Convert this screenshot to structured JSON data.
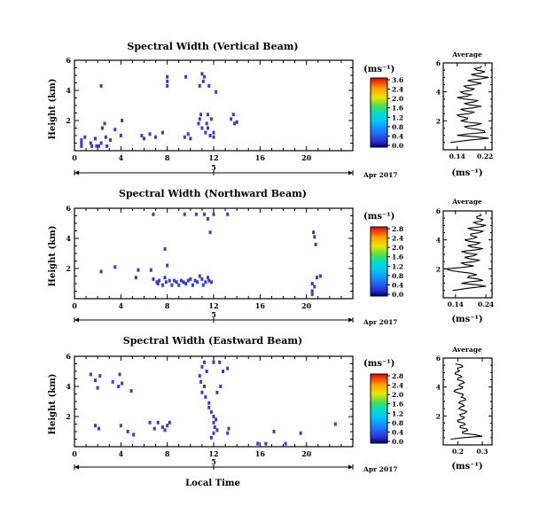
{
  "x_axis_label": "Local Time",
  "date_label": "Apr 2017",
  "date_day": "5",
  "panels": [
    {
      "title": "Spectral Width (Vertical Beam)",
      "ylabel": "Height (km)",
      "unit_label": "(ms⁻¹)",
      "colorbar_ticks": [
        "3.6",
        "2.4",
        "2.0",
        "1.6",
        "1.2",
        "0.8",
        "0.4",
        "0.0"
      ],
      "avg_title": "Average",
      "avg_xticks": [
        "0.14",
        "0.22"
      ],
      "avg_xlabel": "(ms⁻¹)"
    },
    {
      "title": "Spectral Width (Northward Beam)",
      "ylabel": "Height (km)",
      "unit_label": "(ms⁻¹)",
      "colorbar_ticks": [
        "2.8",
        "2.4",
        "2.0",
        "1.6",
        "1.2",
        "0.8",
        "0.4",
        "0.0"
      ],
      "avg_title": "Average",
      "avg_xticks": [
        "0.14",
        "0.24"
      ],
      "avg_xlabel": "(ms⁻¹)"
    },
    {
      "title": "Spectral Width (Eastward Beam)",
      "ylabel": "Height (km)",
      "unit_label": "(ms⁻¹)",
      "colorbar_ticks": [
        "2.8",
        "2.4",
        "2.0",
        "1.6",
        "1.2",
        "0.8",
        "0.4",
        "0.0"
      ],
      "avg_title": "Average",
      "avg_xticks": [
        "0.2",
        "0.3"
      ],
      "avg_xlabel": "(ms⁻¹)"
    }
  ],
  "chart_data": [
    {
      "type": "heatmap",
      "title": "Spectral Width (Vertical Beam)",
      "xlabel": "Local Time",
      "ylabel": "Height (km)",
      "xlim": [
        0,
        24
      ],
      "ylim": [
        0,
        6
      ],
      "xticks": [
        0,
        4,
        8,
        12,
        16,
        20
      ],
      "yticks": [
        2,
        4,
        6
      ],
      "color": "#3b3bc8",
      "points": [
        [
          0.6,
          0.3
        ],
        [
          0.6,
          0.5
        ],
        [
          0.6,
          0.7
        ],
        [
          0.9,
          0.9
        ],
        [
          1.4,
          0.5
        ],
        [
          1.5,
          0.3
        ],
        [
          1.8,
          0.8
        ],
        [
          1.9,
          0.3
        ],
        [
          2.1,
          0.3
        ],
        [
          2.3,
          0.5
        ],
        [
          2.4,
          1.5
        ],
        [
          2.6,
          1.8
        ],
        [
          2.7,
          0.9
        ],
        [
          2.8,
          0.3
        ],
        [
          3.1,
          0.7
        ],
        [
          3.5,
          1.4
        ],
        [
          4.0,
          1.0
        ],
        [
          4.1,
          2.0
        ],
        [
          2.3,
          4.3
        ],
        [
          5.8,
          1.0
        ],
        [
          6.0,
          0.8
        ],
        [
          6.5,
          1.1
        ],
        [
          7.0,
          0.9
        ],
        [
          7.6,
          1.2
        ],
        [
          8.0,
          4.3
        ],
        [
          8.0,
          4.6
        ],
        [
          8.0,
          4.9
        ],
        [
          9.5,
          0.9
        ],
        [
          9.8,
          1.1
        ],
        [
          10.0,
          0.8
        ],
        [
          9.6,
          4.9
        ],
        [
          10.7,
          1.8
        ],
        [
          10.8,
          2.1
        ],
        [
          10.8,
          4.3
        ],
        [
          10.9,
          2.4
        ],
        [
          11.0,
          5.1
        ],
        [
          11.0,
          1.5
        ],
        [
          11.1,
          4.6
        ],
        [
          11.2,
          4.9
        ],
        [
          11.3,
          1.2
        ],
        [
          11.4,
          1.8
        ],
        [
          11.5,
          2.4
        ],
        [
          11.5,
          1.5
        ],
        [
          11.6,
          4.3
        ],
        [
          11.7,
          1.0
        ],
        [
          11.8,
          2.1
        ],
        [
          12.0,
          1.2
        ],
        [
          12.0,
          0.9
        ],
        [
          12.2,
          3.9
        ],
        [
          13.5,
          2.1
        ],
        [
          13.7,
          2.4
        ],
        [
          13.8,
          1.8
        ],
        [
          14.0,
          1.9
        ]
      ],
      "average_profile": {
        "xlim": [
          0.1,
          0.24
        ],
        "xticks": [
          0.14,
          0.22
        ],
        "heights": [
          0.5,
          0.8,
          1.0,
          1.2,
          1.4,
          1.6,
          1.8,
          2.0,
          2.2,
          2.4,
          2.6,
          2.8,
          3.0,
          3.2,
          3.4,
          3.6,
          3.8,
          4.0,
          4.2,
          4.4,
          4.6,
          4.8,
          5.0,
          5.2,
          5.4,
          5.6,
          5.8
        ],
        "values": [
          0.12,
          0.23,
          0.14,
          0.22,
          0.2,
          0.16,
          0.21,
          0.15,
          0.17,
          0.14,
          0.19,
          0.15,
          0.21,
          0.16,
          0.2,
          0.14,
          0.18,
          0.15,
          0.19,
          0.16,
          0.21,
          0.17,
          0.23,
          0.18,
          0.22,
          0.19,
          0.21
        ]
      }
    },
    {
      "type": "heatmap",
      "title": "Spectral Width (Northward Beam)",
      "xlabel": "Local Time",
      "ylabel": "Height (km)",
      "xlim": [
        0,
        24
      ],
      "ylim": [
        0,
        6
      ],
      "xticks": [
        0,
        4,
        8,
        12,
        16,
        20
      ],
      "yticks": [
        2,
        4,
        6
      ],
      "color": "#3b3bc8",
      "points": [
        [
          2.3,
          1.8
        ],
        [
          3.5,
          2.1
        ],
        [
          5.3,
          1.4
        ],
        [
          5.5,
          1.9
        ],
        [
          6.6,
          1.9
        ],
        [
          6.8,
          1.3
        ],
        [
          7.1,
          1.1
        ],
        [
          7.2,
          1.0
        ],
        [
          7.3,
          1.2
        ],
        [
          7.6,
          0.9
        ],
        [
          7.8,
          1.4
        ],
        [
          7.9,
          1.1
        ],
        [
          8.0,
          2.2
        ],
        [
          8.2,
          1.2
        ],
        [
          8.4,
          0.9
        ],
        [
          8.6,
          1.2
        ],
        [
          8.8,
          1.1
        ],
        [
          9.0,
          0.9
        ],
        [
          9.2,
          1.2
        ],
        [
          9.4,
          1.1
        ],
        [
          9.6,
          1.0
        ],
        [
          9.8,
          1.2
        ],
        [
          10.0,
          1.3
        ],
        [
          10.2,
          0.9
        ],
        [
          10.4,
          1.2
        ],
        [
          10.6,
          1.1
        ],
        [
          10.8,
          1.5
        ],
        [
          11.0,
          1.3
        ],
        [
          11.1,
          0.9
        ],
        [
          11.3,
          1.1
        ],
        [
          11.5,
          1.4
        ],
        [
          11.6,
          1.2
        ],
        [
          11.8,
          1.1
        ],
        [
          11.7,
          4.4
        ],
        [
          11.5,
          5.3
        ],
        [
          6.8,
          5.6
        ],
        [
          7.8,
          3.3
        ],
        [
          9.5,
          5.6
        ],
        [
          10.5,
          5.6
        ],
        [
          11.2,
          5.6
        ],
        [
          12.0,
          5.6
        ],
        [
          13.2,
          5.6
        ],
        [
          20.5,
          0.3
        ],
        [
          20.5,
          0.5
        ],
        [
          20.7,
          0.8
        ],
        [
          20.5,
          1.0
        ],
        [
          20.9,
          1.4
        ],
        [
          21.2,
          1.5
        ],
        [
          20.8,
          3.6
        ],
        [
          20.7,
          4.1
        ],
        [
          20.6,
          4.4
        ]
      ],
      "average_profile": {
        "xlim": [
          0.1,
          0.26
        ],
        "xticks": [
          0.14,
          0.24
        ],
        "heights": [
          0.5,
          0.8,
          1.0,
          1.2,
          1.4,
          1.6,
          1.8,
          2.0,
          2.2,
          2.4,
          2.6,
          2.8,
          3.0,
          3.2,
          3.4,
          3.6,
          3.8,
          4.0,
          4.2,
          4.4,
          4.6,
          4.8,
          5.0,
          5.2,
          5.4,
          5.6,
          5.8
        ],
        "values": [
          0.13,
          0.24,
          0.16,
          0.23,
          0.18,
          0.21,
          0.15,
          0.11,
          0.2,
          0.16,
          0.22,
          0.17,
          0.21,
          0.16,
          0.23,
          0.18,
          0.22,
          0.17,
          0.21,
          0.19,
          0.23,
          0.18,
          0.24,
          0.2,
          0.23,
          0.21,
          0.22
        ]
      }
    },
    {
      "type": "heatmap",
      "title": "Spectral Width (Eastward Beam)",
      "xlabel": "Local Time",
      "ylabel": "Height (km)",
      "xlim": [
        0,
        24
      ],
      "ylim": [
        0,
        6
      ],
      "xticks": [
        0,
        4,
        8,
        12,
        16,
        20
      ],
      "yticks": [
        2,
        4,
        6
      ],
      "color": "#3b3bc8",
      "points": [
        [
          1.4,
          4.8
        ],
        [
          1.8,
          4.4
        ],
        [
          2.0,
          3.9
        ],
        [
          2.2,
          4.7
        ],
        [
          1.8,
          1.4
        ],
        [
          2.1,
          1.2
        ],
        [
          3.3,
          4.3
        ],
        [
          3.8,
          4.0
        ],
        [
          3.9,
          4.8
        ],
        [
          4.1,
          4.2
        ],
        [
          4.9,
          3.7
        ],
        [
          4.0,
          1.4
        ],
        [
          4.6,
          1.0
        ],
        [
          5.1,
          0.8
        ],
        [
          6.5,
          1.6
        ],
        [
          6.9,
          1.2
        ],
        [
          7.2,
          1.6
        ],
        [
          7.6,
          1.3
        ],
        [
          8.0,
          1.4
        ],
        [
          8.2,
          1.6
        ],
        [
          7.8,
          1.1
        ],
        [
          10.8,
          4.7
        ],
        [
          10.9,
          4.3
        ],
        [
          11.0,
          3.6
        ],
        [
          11.2,
          4.0
        ],
        [
          11.3,
          3.3
        ],
        [
          11.4,
          5.0
        ],
        [
          11.6,
          2.6
        ],
        [
          11.8,
          2.3
        ],
        [
          12.0,
          2.0
        ],
        [
          12.0,
          1.6
        ],
        [
          12.1,
          1.3
        ],
        [
          12.2,
          1.8
        ],
        [
          12.3,
          1.1
        ],
        [
          12.0,
          0.9
        ],
        [
          11.8,
          0.6
        ],
        [
          11.6,
          2.9
        ],
        [
          12.3,
          3.6
        ],
        [
          12.6,
          4.0
        ],
        [
          12.8,
          5.0
        ],
        [
          13.2,
          5.2
        ],
        [
          11.0,
          5.3
        ],
        [
          11.2,
          5.6
        ],
        [
          12.0,
          5.6
        ],
        [
          12.5,
          5.6
        ],
        [
          13.3,
          1.2
        ],
        [
          13.2,
          0.9
        ],
        [
          15.8,
          0.2
        ],
        [
          16.5,
          0.2
        ],
        [
          17.2,
          1.0
        ],
        [
          18.2,
          0.2
        ],
        [
          19.5,
          0.9
        ],
        [
          22.5,
          1.5
        ]
      ],
      "average_profile": {
        "xlim": [
          0.14,
          0.34
        ],
        "xticks": [
          0.2,
          0.3
        ],
        "heights": [
          0.4,
          0.6,
          0.8,
          1.0,
          1.2,
          1.4,
          1.6,
          1.8,
          2.0,
          2.2,
          2.4,
          2.6,
          2.8,
          3.0,
          3.2,
          3.4,
          3.6,
          3.8,
          4.0,
          4.2,
          4.4,
          4.6,
          4.8,
          5.0,
          5.2,
          5.4,
          5.6
        ],
        "values": [
          0.17,
          0.3,
          0.22,
          0.24,
          0.21,
          0.23,
          0.2,
          0.22,
          0.21,
          0.23,
          0.22,
          0.21,
          0.22,
          0.21,
          0.23,
          0.22,
          0.2,
          0.19,
          0.22,
          0.21,
          0.22,
          0.2,
          0.21,
          0.19,
          0.2,
          0.22,
          0.19
        ]
      }
    }
  ]
}
